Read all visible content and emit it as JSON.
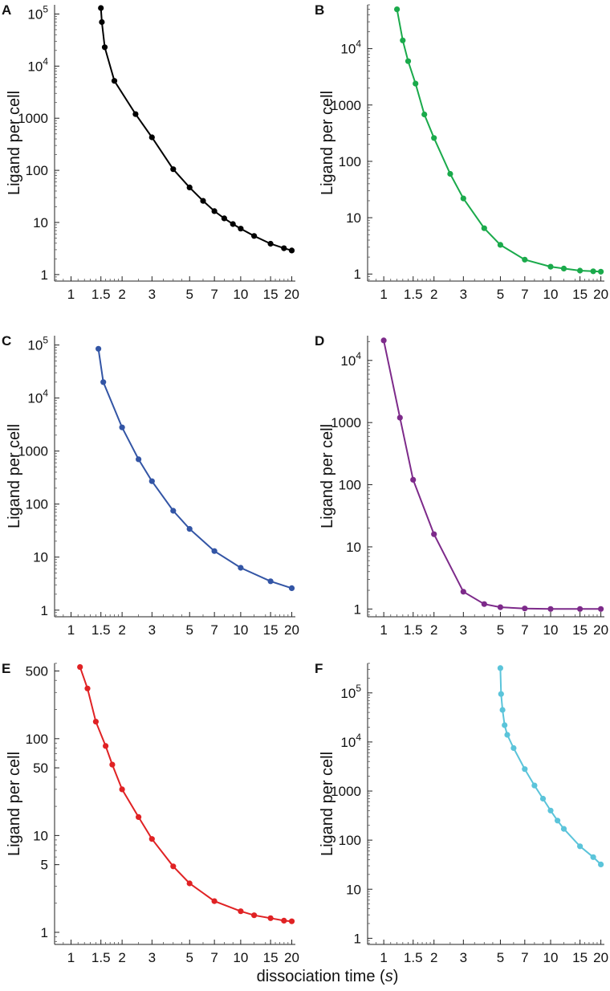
{
  "figure": {
    "xlabel_text": "dissociation time (",
    "xlabel_var": "s",
    "xlabel_close": ")"
  },
  "chart_data": [
    {
      "type": "line",
      "panel": "A",
      "color": "#000000",
      "xscale": "log",
      "yscale": "log",
      "xlim": [
        0.8,
        21
      ],
      "ylim": [
        0.75,
        150000
      ],
      "xticks": [
        1,
        1.5,
        2,
        3,
        5,
        7,
        10,
        15,
        20
      ],
      "xtick_labels": [
        "1",
        "1.5",
        "2",
        "3",
        "5",
        "7",
        "10",
        "15",
        "20"
      ],
      "yticks": [
        1,
        10,
        100,
        1000,
        10000,
        100000
      ],
      "ytick_labels": [
        "1",
        "10",
        "100",
        "1000",
        "10^4",
        "10^5"
      ],
      "ylabel": "Ligand per cell",
      "x": [
        1.5,
        1.52,
        1.58,
        1.8,
        2.4,
        3,
        4,
        5,
        6,
        7,
        8,
        9,
        10,
        12,
        15,
        18,
        20
      ],
      "y": [
        130000,
        70000,
        23000,
        5200,
        1200,
        430,
        105,
        47,
        26,
        16.5,
        12,
        9.3,
        7.6,
        5.5,
        3.9,
        3.2,
        2.9
      ]
    },
    {
      "type": "line",
      "panel": "B",
      "color": "#1aaa4b",
      "xscale": "log",
      "yscale": "log",
      "xlim": [
        0.8,
        21
      ],
      "ylim": [
        0.75,
        60000
      ],
      "xticks": [
        1,
        1.5,
        2,
        3,
        5,
        7,
        10,
        15,
        20
      ],
      "xtick_labels": [
        "1",
        "1.5",
        "2",
        "3",
        "5",
        "7",
        "10",
        "15",
        "20"
      ],
      "yticks": [
        1,
        10,
        100,
        1000,
        10000
      ],
      "ytick_labels": [
        "1",
        "10",
        "100",
        "1000",
        "10^4"
      ],
      "ylabel": "Ligand per cell",
      "x": [
        1.2,
        1.3,
        1.4,
        1.55,
        1.75,
        2.0,
        2.5,
        3.0,
        4.0,
        5.0,
        7.0,
        10,
        12,
        15,
        18,
        20
      ],
      "y": [
        50000,
        14000,
        6000,
        2400,
        680,
        260,
        60,
        22,
        6.5,
        3.3,
        1.8,
        1.35,
        1.25,
        1.15,
        1.12,
        1.1
      ]
    },
    {
      "type": "line",
      "panel": "C",
      "color": "#3355a5",
      "xscale": "log",
      "yscale": "log",
      "xlim": [
        0.8,
        21
      ],
      "ylim": [
        0.75,
        150000
      ],
      "xticks": [
        1,
        1.5,
        2,
        3,
        5,
        7,
        10,
        15,
        20
      ],
      "xtick_labels": [
        "1",
        "1.5",
        "2",
        "3",
        "5",
        "7",
        "10",
        "15",
        "20"
      ],
      "yticks": [
        1,
        10,
        100,
        1000,
        10000,
        100000
      ],
      "ytick_labels": [
        "1",
        "10",
        "100",
        "1000",
        "10^4",
        "10^5"
      ],
      "ylabel": "Ligand per cell",
      "x": [
        1.45,
        1.55,
        2.0,
        2.5,
        3.0,
        4.0,
        5.0,
        7.0,
        10,
        15,
        20
      ],
      "y": [
        85000,
        20000,
        2800,
        700,
        270,
        75,
        34,
        13,
        6.3,
        3.5,
        2.6
      ]
    },
    {
      "type": "line",
      "panel": "D",
      "color": "#7d2a8a",
      "xscale": "log",
      "yscale": "log",
      "xlim": [
        0.8,
        21
      ],
      "ylim": [
        0.75,
        25000
      ],
      "xticks": [
        1,
        1.5,
        2,
        3,
        5,
        7,
        10,
        15,
        20
      ],
      "xtick_labels": [
        "1",
        "1.5",
        "2",
        "3",
        "5",
        "7",
        "10",
        "15",
        "20"
      ],
      "yticks": [
        1,
        10,
        100,
        1000,
        10000
      ],
      "ytick_labels": [
        "1",
        "10",
        "100",
        "1000",
        "10^4"
      ],
      "ylabel": "Ligand per cell",
      "x": [
        1.0,
        1.25,
        1.5,
        2.0,
        3.0,
        4.0,
        5.0,
        7.0,
        10,
        15,
        20
      ],
      "y": [
        21000,
        1200,
        120,
        16,
        1.9,
        1.2,
        1.07,
        1.02,
        1.0,
        1.0,
        1.0
      ]
    },
    {
      "type": "line",
      "panel": "E",
      "color": "#e02224",
      "xscale": "log",
      "yscale": "log",
      "xlim": [
        0.8,
        21
      ],
      "ylim": [
        0.75,
        600
      ],
      "xticks": [
        1,
        1.5,
        2,
        3,
        5,
        7,
        10,
        15,
        20
      ],
      "xtick_labels": [
        "1",
        "1.5",
        "2",
        "3",
        "5",
        "7",
        "10",
        "15",
        "20"
      ],
      "yticks": [
        1,
        5,
        10,
        50,
        100,
        500
      ],
      "ytick_labels": [
        "1",
        "5",
        "10",
        "50",
        "100",
        "500"
      ],
      "ylabel": "Ligand per cell",
      "x": [
        1.13,
        1.25,
        1.4,
        1.6,
        1.75,
        2.0,
        2.5,
        3.0,
        4.0,
        5.0,
        7.0,
        10,
        12,
        15,
        18,
        20
      ],
      "y": [
        550,
        330,
        150,
        84,
        54,
        30,
        15.5,
        9.2,
        4.8,
        3.2,
        2.1,
        1.65,
        1.5,
        1.4,
        1.32,
        1.3
      ]
    },
    {
      "type": "line",
      "panel": "F",
      "color": "#5bc4da",
      "xscale": "log",
      "yscale": "log",
      "xlim": [
        0.8,
        21
      ],
      "ylim": [
        0.75,
        400000
      ],
      "xticks": [
        1,
        1.5,
        2,
        3,
        5,
        7,
        10,
        15,
        20
      ],
      "xtick_labels": [
        "1",
        "1.5",
        "2",
        "3",
        "5",
        "7",
        "10",
        "15",
        "20"
      ],
      "yticks": [
        1,
        10,
        100,
        1000,
        10000,
        100000
      ],
      "ytick_labels": [
        "1",
        "10",
        "100",
        "1000",
        "10^4",
        "10^5"
      ],
      "ylabel": "Ligand per cell",
      "x": [
        5.0,
        5.05,
        5.15,
        5.3,
        5.5,
        6.0,
        7.0,
        8.0,
        9.0,
        10.0,
        11.0,
        12.0,
        15.0,
        18.0,
        20.0
      ],
      "y": [
        320000,
        95000,
        45000,
        22000,
        14000,
        7500,
        2800,
        1300,
        700,
        400,
        250,
        170,
        75,
        45,
        32
      ]
    }
  ]
}
